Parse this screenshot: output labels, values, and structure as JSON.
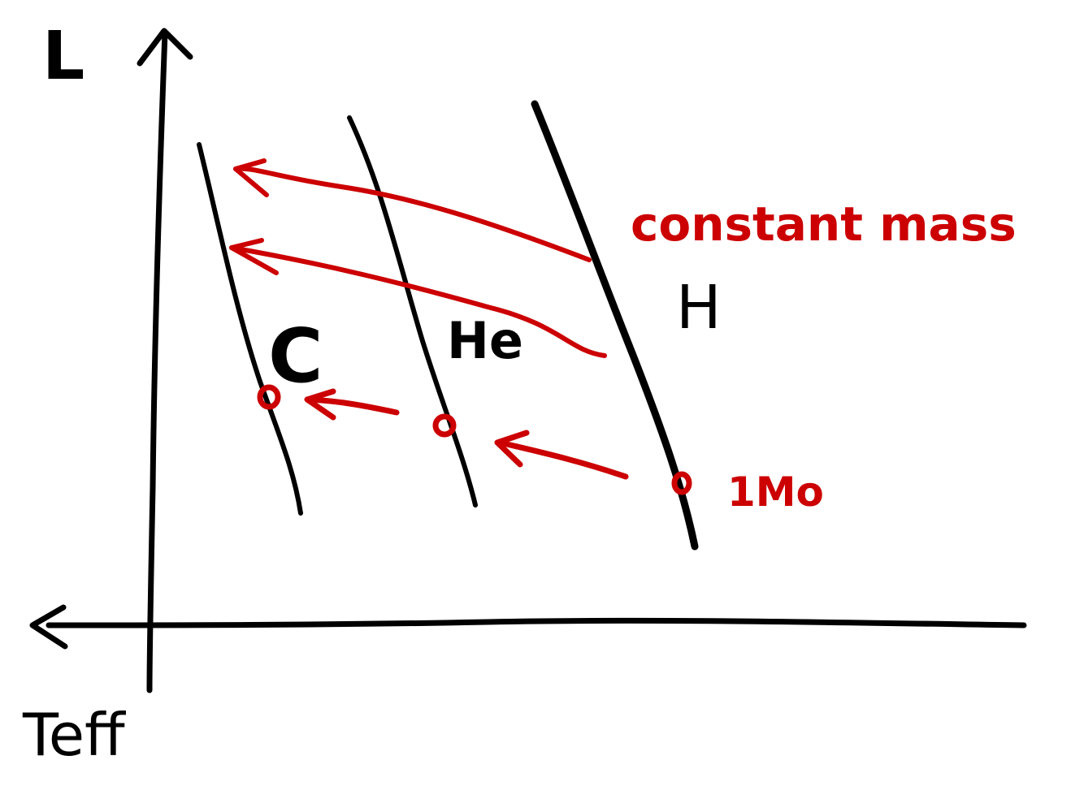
{
  "axes": {
    "y_label": "L",
    "x_label": "Teff"
  },
  "sequences": [
    {
      "label": "C"
    },
    {
      "label": "He"
    },
    {
      "label": "H"
    }
  ],
  "annotations": {
    "constant_mass": "constant mass",
    "solar_mass": "1Mo"
  },
  "colors": {
    "ink": "#000000",
    "annotation": "#cc0000"
  }
}
